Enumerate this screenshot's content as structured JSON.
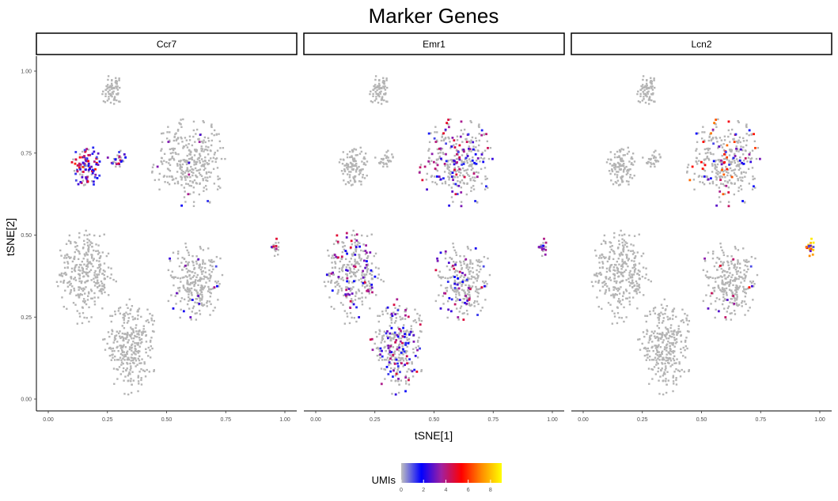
{
  "chart_data": {
    "type": "scatter",
    "title": "Marker Genes",
    "xlabel": "tSNE[1]",
    "ylabel": "tSNE[2]",
    "xlim": [
      0,
      1
    ],
    "ylim": [
      0,
      1
    ],
    "x_ticks": [
      "0.00",
      "0.25",
      "0.50",
      "0.75",
      "1.00"
    ],
    "y_ticks": [
      "0.00",
      "0.25",
      "0.50",
      "0.75",
      "1.00"
    ],
    "grid": false,
    "legend": {
      "title": "UMIs",
      "position": "bottom",
      "min": 0,
      "max": 9,
      "ticks": [
        "0",
        "2",
        "4",
        "6",
        "8"
      ],
      "colors": [
        "#c0c0c0",
        "#0000ff",
        "#a020a0",
        "#ff0000",
        "#ff8c00",
        "#ffff00"
      ]
    },
    "panels": [
      {
        "name": "Ccr7"
      },
      {
        "name": "Emr1"
      },
      {
        "name": "Lcn2"
      }
    ],
    "clusters": [
      {
        "id": "top-small",
        "cx": 0.27,
        "cy": 0.94,
        "rx": 0.05,
        "ry": 0.055,
        "n": 70
      },
      {
        "id": "top-left",
        "cx": 0.16,
        "cy": 0.71,
        "rx": 0.07,
        "ry": 0.07,
        "n": 110
      },
      {
        "id": "top-left-bridge",
        "cx": 0.3,
        "cy": 0.73,
        "rx": 0.05,
        "ry": 0.03,
        "n": 30
      },
      {
        "id": "top-right",
        "cx": 0.6,
        "cy": 0.72,
        "rx": 0.17,
        "ry": 0.14,
        "n": 330
      },
      {
        "id": "bottom-left",
        "cx": 0.16,
        "cy": 0.38,
        "rx": 0.13,
        "ry": 0.16,
        "n": 300
      },
      {
        "id": "bottom-center",
        "cx": 0.35,
        "cy": 0.16,
        "rx": 0.12,
        "ry": 0.15,
        "n": 300
      },
      {
        "id": "bottom-right",
        "cx": 0.62,
        "cy": 0.36,
        "rx": 0.13,
        "ry": 0.13,
        "n": 260
      },
      {
        "id": "far-right",
        "cx": 0.96,
        "cy": 0.46,
        "rx": 0.02,
        "ry": 0.035,
        "n": 20
      }
    ],
    "expression": [
      {
        "panel": "Ccr7",
        "cluster": "top-left",
        "fraction": 0.7,
        "max_umi": 6
      },
      {
        "panel": "Ccr7",
        "cluster": "top-left-bridge",
        "fraction": 0.5,
        "max_umi": 5
      },
      {
        "panel": "Ccr7",
        "cluster": "top-right",
        "fraction": 0.03,
        "max_umi": 4
      },
      {
        "panel": "Ccr7",
        "cluster": "bottom-right",
        "fraction": 0.04,
        "max_umi": 4
      },
      {
        "panel": "Ccr7",
        "cluster": "far-right",
        "fraction": 0.3,
        "max_umi": 5
      },
      {
        "panel": "Emr1",
        "cluster": "top-right",
        "fraction": 0.25,
        "max_umi": 5
      },
      {
        "panel": "Emr1",
        "cluster": "bottom-left",
        "fraction": 0.18,
        "max_umi": 5
      },
      {
        "panel": "Emr1",
        "cluster": "bottom-center",
        "fraction": 0.25,
        "max_umi": 5
      },
      {
        "panel": "Emr1",
        "cluster": "bottom-right",
        "fraction": 0.18,
        "max_umi": 5
      },
      {
        "panel": "Emr1",
        "cluster": "far-right",
        "fraction": 0.6,
        "max_umi": 4
      },
      {
        "panel": "Lcn2",
        "cluster": "top-right",
        "fraction": 0.15,
        "max_umi": 7
      },
      {
        "panel": "Lcn2",
        "cluster": "bottom-right",
        "fraction": 0.04,
        "max_umi": 6
      },
      {
        "panel": "Lcn2",
        "cluster": "far-right",
        "fraction": 1.0,
        "max_umi": 9
      }
    ]
  }
}
